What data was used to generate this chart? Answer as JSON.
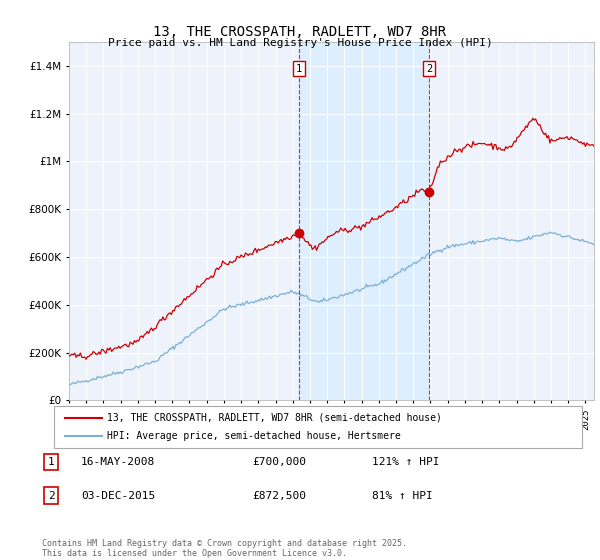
{
  "title": "13, THE CROSSPATH, RADLETT, WD7 8HR",
  "subtitle": "Price paid vs. HM Land Registry's House Price Index (HPI)",
  "legend_line1": "13, THE CROSSPATH, RADLETT, WD7 8HR (semi-detached house)",
  "legend_line2": "HPI: Average price, semi-detached house, Hertsmere",
  "footer": "Contains HM Land Registry data © Crown copyright and database right 2025.\nThis data is licensed under the Open Government Licence v3.0.",
  "annotation1_label": "1",
  "annotation1_date": "16-MAY-2008",
  "annotation1_price": "£700,000",
  "annotation1_hpi": "121% ↑ HPI",
  "annotation2_label": "2",
  "annotation2_date": "03-DEC-2015",
  "annotation2_price": "£872,500",
  "annotation2_hpi": "81% ↑ HPI",
  "vline1_x": 2008.37,
  "vline2_x": 2015.92,
  "price_color": "#cc0000",
  "hpi_color": "#7ab0d4",
  "shade_color": "#ddeeff",
  "background_color": "#eef3fb",
  "ylim": [
    0,
    1500000
  ],
  "xlim_start": 1995,
  "xlim_end": 2025.5,
  "yticks": [
    0,
    200000,
    400000,
    600000,
    800000,
    1000000,
    1200000,
    1400000
  ],
  "transaction1_y": 700000,
  "transaction2_y": 872500
}
